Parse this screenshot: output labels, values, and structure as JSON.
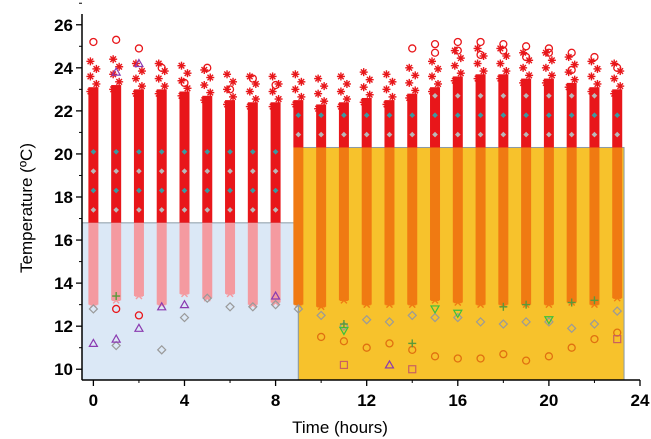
{
  "chart_data": {
    "type": "scatter",
    "title": "",
    "xlabel": "Time (hours)",
    "ylabel": "Temperature (ºC)",
    "xlim": [
      -0.5,
      24
    ],
    "ylim": [
      9.5,
      26.5
    ],
    "x_ticks": [
      "0",
      "4",
      "8",
      "12",
      "16",
      "20",
      "24"
    ],
    "y_ticks": [
      "10",
      "12",
      "14",
      "16",
      "18",
      "20",
      "22",
      "24",
      "26"
    ],
    "grid": false,
    "legend": "none",
    "regions": [
      {
        "x_start": -0.5,
        "x_end": 9,
        "y_top": 16.8,
        "color": "#dbe8f6"
      },
      {
        "x_start": 9,
        "x_end": 23.3,
        "y_top": 20.3,
        "color": "#f7c22c"
      }
    ],
    "series": [
      {
        "marker": "asterisk",
        "color": "#e8161a",
        "x": [
          0,
          1,
          2,
          3,
          4,
          5,
          6,
          7,
          8,
          9,
          10,
          11,
          12,
          13,
          14,
          15,
          16,
          17,
          18,
          19,
          20,
          21,
          22,
          23
        ],
        "ymin": [
          13.0,
          13.2,
          13.4,
          13.0,
          13.5,
          13.3,
          13.5,
          13.0,
          13.1,
          13.0,
          12.9,
          13.2,
          13.0,
          13.0,
          13.0,
          13.2,
          13.1,
          13.0,
          13.0,
          13.0,
          13.0,
          13.1,
          13.0,
          13.3
        ],
        "ymax": [
          24.3,
          24.4,
          24.2,
          24.2,
          24.1,
          23.9,
          23.7,
          23.6,
          23.6,
          23.7,
          23.5,
          23.6,
          23.8,
          23.7,
          24.0,
          24.3,
          24.8,
          24.9,
          24.9,
          24.7,
          24.7,
          24.5,
          24.3,
          24.2
        ]
      },
      {
        "marker": "circle",
        "color": "#e8161a",
        "x": [
          0,
          1,
          1,
          2,
          2,
          3,
          4,
          5,
          6,
          7,
          8,
          14,
          15,
          15,
          16,
          16,
          17,
          17,
          18,
          18,
          19,
          19,
          20,
          20,
          21,
          21,
          22,
          23
        ],
        "y": [
          25.2,
          25.3,
          12.8,
          24.9,
          12.5,
          24.0,
          23.3,
          24.0,
          23.0,
          23.5,
          23.2,
          24.9,
          25.1,
          24.7,
          25.2,
          24.8,
          25.2,
          24.6,
          25.1,
          24.8,
          25.0,
          24.5,
          24.9,
          24.7,
          24.7,
          23.9,
          24.5,
          24.0
        ]
      },
      {
        "marker": "circle",
        "color": "#e07010",
        "x": [
          10,
          11,
          12,
          13,
          14,
          15,
          16,
          17,
          18,
          19,
          20,
          21,
          22,
          23
        ],
        "y": [
          11.5,
          11.3,
          11.0,
          11.2,
          10.9,
          10.6,
          10.5,
          10.5,
          10.7,
          10.4,
          10.6,
          11.0,
          11.4,
          11.7
        ]
      },
      {
        "marker": "diamond",
        "color": "#9a9a9a",
        "x": [
          0,
          1,
          3,
          4,
          5,
          6,
          7,
          8,
          9,
          10,
          11,
          12,
          13,
          14,
          15,
          16,
          17,
          18,
          19,
          20,
          21,
          22,
          23
        ],
        "y": [
          12.8,
          11.1,
          10.9,
          12.4,
          13.3,
          12.9,
          12.9,
          13.0,
          12.8,
          12.5,
          12.0,
          12.3,
          12.2,
          12.5,
          12.4,
          12.4,
          12.2,
          12.1,
          12.2,
          12.2,
          11.9,
          12.1,
          12.7
        ]
      },
      {
        "marker": "triangle",
        "color": "#8a3ab0",
        "x": [
          0,
          1,
          2,
          3,
          4,
          8,
          1,
          2,
          13
        ],
        "y": [
          11.2,
          11.4,
          11.9,
          12.9,
          13.0,
          13.4,
          23.8,
          24.2,
          10.2
        ]
      },
      {
        "marker": "triangle-down",
        "color": "#3cc03c",
        "x": [
          11,
          15,
          16,
          20
        ],
        "y": [
          11.8,
          12.8,
          12.6,
          12.3
        ]
      },
      {
        "marker": "plus",
        "color": "#5a9a3a",
        "x": [
          1,
          11,
          14,
          18,
          19,
          21,
          22
        ],
        "y": [
          13.4,
          12.1,
          11.2,
          12.9,
          13.0,
          13.1,
          13.2
        ]
      },
      {
        "marker": "square",
        "color": "#c86060",
        "x": [
          11,
          14,
          23
        ],
        "y": [
          10.2,
          10.0,
          11.4
        ]
      }
    ]
  }
}
